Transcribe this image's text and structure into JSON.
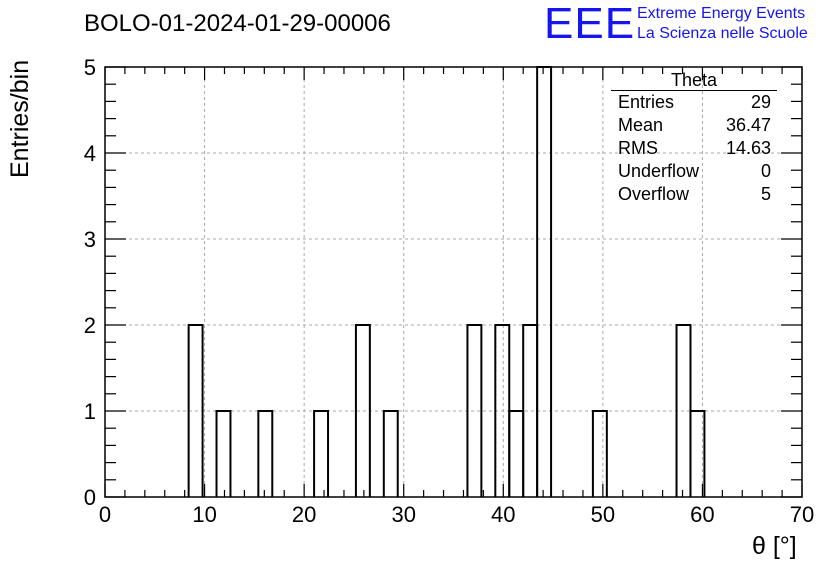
{
  "chart_data": {
    "type": "histogram",
    "title": "BOLO-01-2024-01-29-00006",
    "xlabel": "θ [°]",
    "ylabel": "Entries/bin",
    "xlim": [
      0,
      70
    ],
    "ylim": [
      0,
      5
    ],
    "bin_width": 1.4,
    "x_ticks": [
      0,
      10,
      20,
      30,
      40,
      50,
      60,
      70
    ],
    "y_ticks": [
      0,
      1,
      2,
      3,
      4,
      5
    ],
    "grid": true,
    "bins": [
      {
        "x": [
          8.4,
          9.8
        ],
        "value": 2
      },
      {
        "x": [
          11.2,
          12.6
        ],
        "value": 1
      },
      {
        "x": [
          15.4,
          16.8
        ],
        "value": 1
      },
      {
        "x": [
          21.0,
          22.4
        ],
        "value": 1
      },
      {
        "x": [
          25.2,
          26.6
        ],
        "value": 2
      },
      {
        "x": [
          28.0,
          29.4
        ],
        "value": 1
      },
      {
        "x": [
          36.4,
          37.8
        ],
        "value": 2
      },
      {
        "x": [
          39.2,
          40.6
        ],
        "value": 2
      },
      {
        "x": [
          40.6,
          42.0
        ],
        "value": 1
      },
      {
        "x": [
          42.0,
          43.4
        ],
        "value": 2
      },
      {
        "x": [
          43.4,
          44.8
        ],
        "value": 5
      },
      {
        "x": [
          49.0,
          50.4
        ],
        "value": 1
      },
      {
        "x": [
          57.4,
          58.8
        ],
        "value": 2
      },
      {
        "x": [
          58.8,
          60.2
        ],
        "value": 1
      }
    ],
    "stats_box": {
      "title": "Theta",
      "rows": [
        {
          "label": "Entries",
          "value": "29"
        },
        {
          "label": "Mean",
          "value": "36.47"
        },
        {
          "label": "RMS",
          "value": "14.63"
        },
        {
          "label": "Underflow",
          "value": "0"
        },
        {
          "label": "Overflow",
          "value": "5"
        }
      ],
      "placement": "top-right"
    }
  },
  "logo": {
    "mark": "EEE",
    "line1": "Extreme Energy Events",
    "line2": "La Scienza nelle Scuole",
    "color": "#1515f0"
  }
}
